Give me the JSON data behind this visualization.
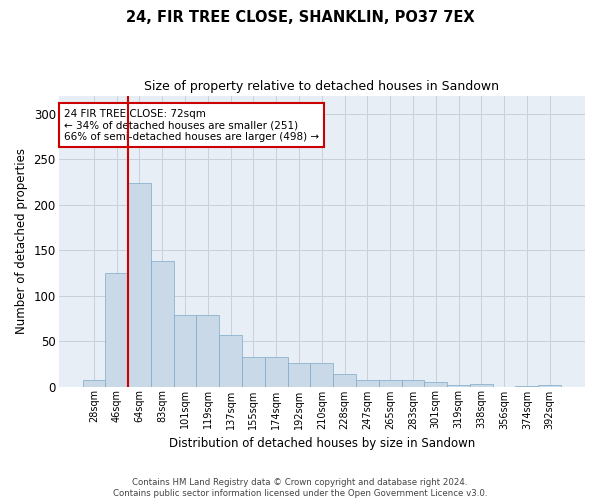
{
  "title1": "24, FIR TREE CLOSE, SHANKLIN, PO37 7EX",
  "title2": "Size of property relative to detached houses in Sandown",
  "xlabel": "Distribution of detached houses by size in Sandown",
  "ylabel": "Number of detached properties",
  "categories": [
    "28sqm",
    "46sqm",
    "64sqm",
    "83sqm",
    "101sqm",
    "119sqm",
    "137sqm",
    "155sqm",
    "174sqm",
    "192sqm",
    "210sqm",
    "228sqm",
    "247sqm",
    "265sqm",
    "283sqm",
    "301sqm",
    "319sqm",
    "338sqm",
    "356sqm",
    "374sqm",
    "392sqm"
  ],
  "values": [
    7,
    125,
    224,
    138,
    79,
    79,
    57,
    33,
    33,
    26,
    26,
    14,
    7,
    7,
    7,
    5,
    2,
    3,
    0,
    1,
    2
  ],
  "bar_color": "#c9d9e8",
  "bar_edge_color": "#7aaac8",
  "grid_color": "#c8d0dc",
  "background_color": "#e8eef5",
  "vline_x": 1.5,
  "vline_color": "#cc0000",
  "annotation_title": "24 FIR TREE CLOSE: 72sqm",
  "annotation_line2": "← 34% of detached houses are smaller (251)",
  "annotation_line3": "66% of semi-detached houses are larger (498) →",
  "annotation_box_color": "#cc0000",
  "footer_line1": "Contains HM Land Registry data © Crown copyright and database right 2024.",
  "footer_line2": "Contains public sector information licensed under the Open Government Licence v3.0.",
  "ylim": [
    0,
    320
  ],
  "yticks": [
    0,
    50,
    100,
    150,
    200,
    250,
    300
  ]
}
